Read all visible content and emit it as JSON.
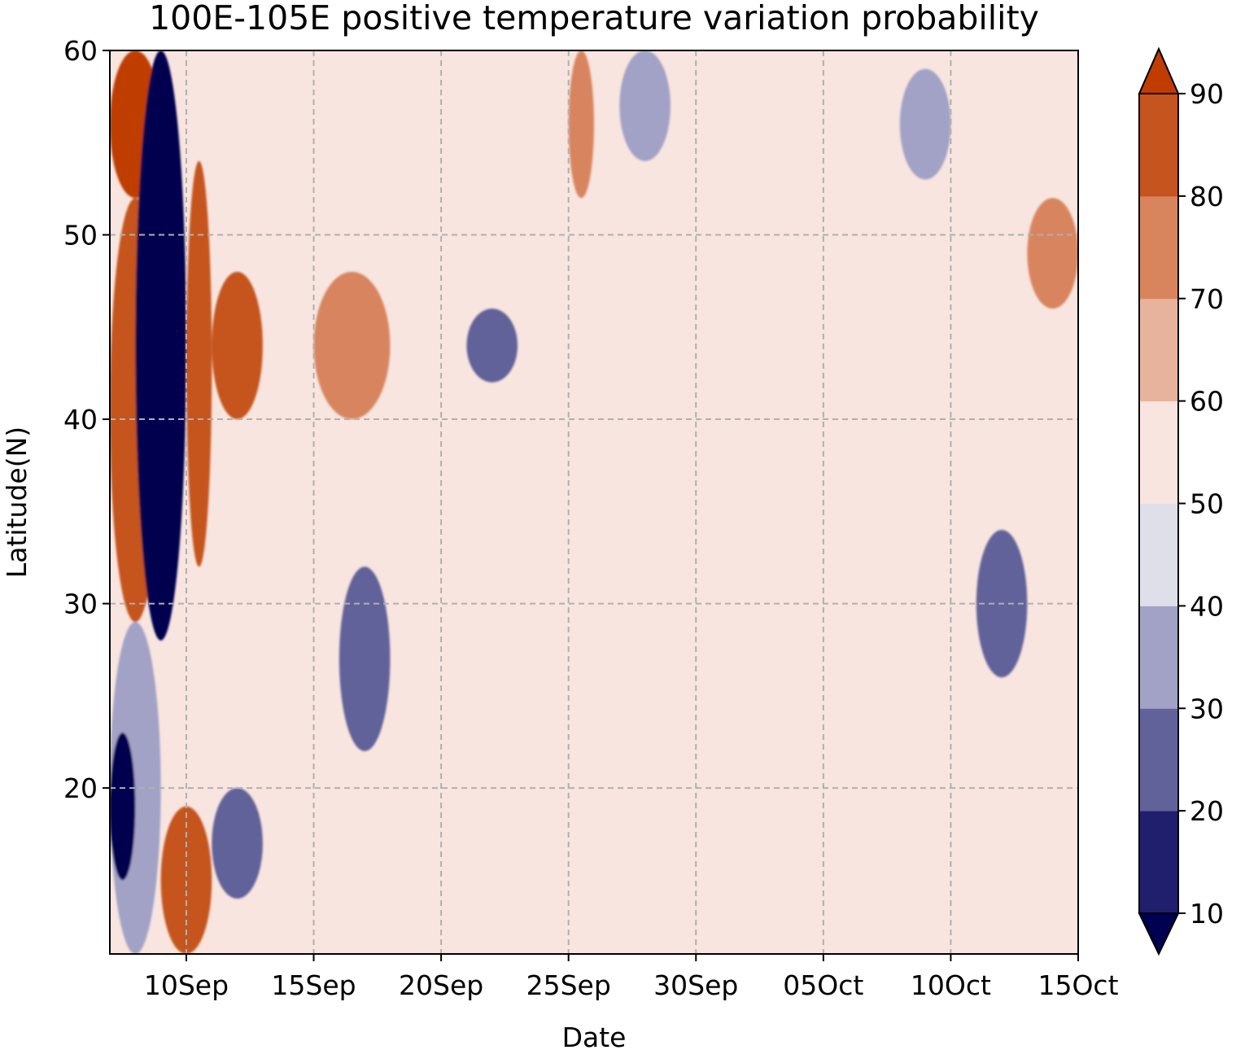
{
  "chart_data": {
    "type": "heatmap",
    "title": "100E-105E positive temperature variation probability",
    "xlabel": "Date",
    "ylabel": "Latitude(N)",
    "x_range": [
      "2021-09-07",
      "2021-10-15"
    ],
    "ylim": [
      11,
      60
    ],
    "x_ticks": [
      {
        "date": "2021-09-10",
        "label": "10Sep"
      },
      {
        "date": "2021-09-15",
        "label": "15Sep"
      },
      {
        "date": "2021-09-20",
        "label": "20Sep"
      },
      {
        "date": "2021-09-25",
        "label": "25Sep"
      },
      {
        "date": "2021-09-30",
        "label": "30Sep"
      },
      {
        "date": "2021-10-05",
        "label": "05Oct"
      },
      {
        "date": "2021-10-10",
        "label": "10Oct"
      },
      {
        "date": "2021-10-15",
        "label": "15Oct"
      }
    ],
    "y_ticks": [
      {
        "value": 20,
        "label": "20"
      },
      {
        "value": 30,
        "label": "30"
      },
      {
        "value": 40,
        "label": "40"
      },
      {
        "value": 50,
        "label": "50"
      },
      {
        "value": 60,
        "label": "60"
      }
    ],
    "grid": true,
    "colorbar": {
      "levels": [
        10,
        20,
        30,
        40,
        50,
        60,
        70,
        80,
        90
      ],
      "labels": [
        "10",
        "20",
        "30",
        "40",
        "50",
        "60",
        "70",
        "80",
        "90"
      ],
      "colors": [
        "#1f1f6e",
        "#62629a",
        "#a2a2c6",
        "#dfdfe9",
        "#f8e5df",
        "#e8b39c",
        "#d8855e",
        "#c5541f"
      ],
      "under_color": "#000050",
      "over_color": "#c03c00",
      "extend": "both"
    },
    "regions": [
      {
        "lat": [
          52,
          60
        ],
        "date": [
          "2021-09-07",
          "2021-09-09"
        ],
        "value": 92
      },
      {
        "lat": [
          29,
          52
        ],
        "date": [
          "2021-09-07",
          "2021-09-09"
        ],
        "value": 88
      },
      {
        "lat": [
          11,
          29
        ],
        "date": [
          "2021-09-07",
          "2021-09-09"
        ],
        "value": 32
      },
      {
        "lat": [
          15,
          23
        ],
        "date": [
          "2021-09-07",
          "2021-09-08"
        ],
        "value": 8
      },
      {
        "lat": [
          28,
          60
        ],
        "date": [
          "2021-09-08",
          "2021-09-10"
        ],
        "value": 8
      },
      {
        "lat": [
          32,
          54
        ],
        "date": [
          "2021-09-10",
          "2021-09-11"
        ],
        "value": 85
      },
      {
        "lat": [
          40,
          48
        ],
        "date": [
          "2021-09-11",
          "2021-09-13"
        ],
        "value": 82
      },
      {
        "lat": [
          11,
          19
        ],
        "date": [
          "2021-09-09",
          "2021-09-11"
        ],
        "value": 85
      },
      {
        "lat": [
          14,
          20
        ],
        "date": [
          "2021-09-11",
          "2021-09-13"
        ],
        "value": 22
      },
      {
        "lat": [
          40,
          48
        ],
        "date": [
          "2021-09-15",
          "2021-09-18"
        ],
        "value": 72
      },
      {
        "lat": [
          22,
          32
        ],
        "date": [
          "2021-09-16",
          "2021-09-18"
        ],
        "value": 28
      },
      {
        "lat": [
          42,
          46
        ],
        "date": [
          "2021-09-21",
          "2021-09-23"
        ],
        "value": 25
      },
      {
        "lat": [
          52,
          60
        ],
        "date": [
          "2021-09-25",
          "2021-09-26"
        ],
        "value": 75
      },
      {
        "lat": [
          54,
          60
        ],
        "date": [
          "2021-09-27",
          "2021-09-29"
        ],
        "value": 30
      },
      {
        "lat": [
          46,
          52
        ],
        "date": [
          "2021-10-13",
          "2021-10-15"
        ],
        "value": 75
      },
      {
        "lat": [
          26,
          34
        ],
        "date": [
          "2021-10-11",
          "2021-10-13"
        ],
        "value": 25
      },
      {
        "lat": [
          53,
          59
        ],
        "date": [
          "2021-10-08",
          "2021-10-10"
        ],
        "value": 32
      }
    ]
  }
}
